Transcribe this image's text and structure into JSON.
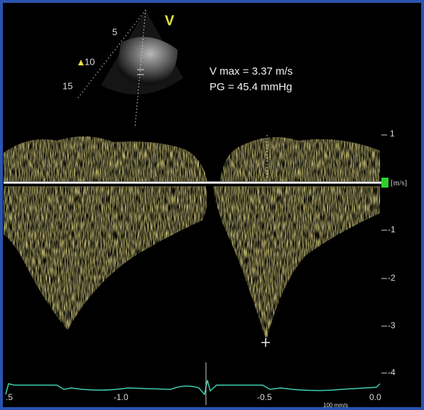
{
  "sector": {
    "view_label": "V",
    "depth_labels": [
      "5",
      "10",
      "15"
    ]
  },
  "measurements": [
    "V max = 3.37 m/s",
    "PG = 45.4 mmHg"
  ],
  "velocity_scale": {
    "labels": [
      "1",
      "-1",
      "-2",
      "-3",
      "-4"
    ],
    "unit": "[m/s]"
  },
  "time_axis": {
    "labels": [
      ".5",
      "-1.0",
      "-0.5",
      "0.0"
    ],
    "sweep_speed": "100 mm/s"
  }
}
